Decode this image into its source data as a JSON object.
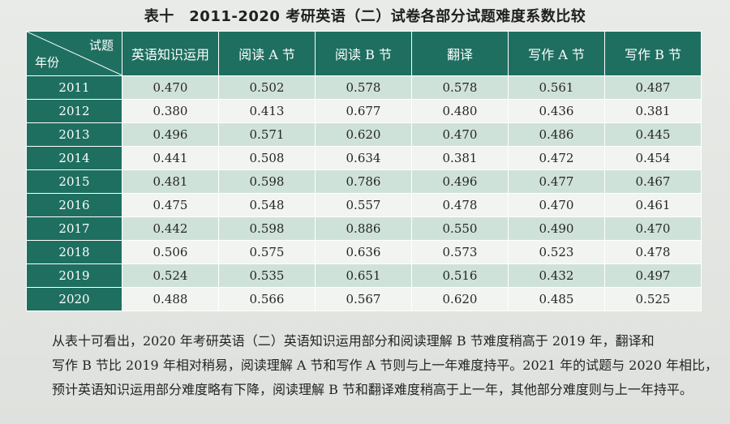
{
  "title": "表十　2011-2020 考研英语（二）试卷各部分试题难度系数比较",
  "table": {
    "corner_top": "试题",
    "corner_bottom": "年份",
    "columns": [
      "英语知识运用",
      "阅读 A 节",
      "阅读 B 节",
      "翻译",
      "写作 A 节",
      "写作 B 节"
    ],
    "rows": [
      {
        "year": "2011",
        "values": [
          "0.470",
          "0.502",
          "0.578",
          "0.578",
          "0.561",
          "0.487"
        ]
      },
      {
        "year": "2012",
        "values": [
          "0.380",
          "0.413",
          "0.677",
          "0.480",
          "0.436",
          "0.381"
        ]
      },
      {
        "year": "2013",
        "values": [
          "0.496",
          "0.571",
          "0.620",
          "0.470",
          "0.486",
          "0.445"
        ]
      },
      {
        "year": "2014",
        "values": [
          "0.441",
          "0.508",
          "0.634",
          "0.381",
          "0.472",
          "0.454"
        ]
      },
      {
        "year": "2015",
        "values": [
          "0.481",
          "0.598",
          "0.786",
          "0.496",
          "0.477",
          "0.467"
        ]
      },
      {
        "year": "2016",
        "values": [
          "0.475",
          "0.548",
          "0.557",
          "0.478",
          "0.470",
          "0.461"
        ]
      },
      {
        "year": "2017",
        "values": [
          "0.442",
          "0.598",
          "0.886",
          "0.550",
          "0.490",
          "0.470"
        ]
      },
      {
        "year": "2018",
        "values": [
          "0.506",
          "0.575",
          "0.636",
          "0.573",
          "0.523",
          "0.478"
        ]
      },
      {
        "year": "2019",
        "values": [
          "0.524",
          "0.535",
          "0.651",
          "0.516",
          "0.432",
          "0.497"
        ]
      },
      {
        "year": "2020",
        "values": [
          "0.488",
          "0.566",
          "0.567",
          "0.620",
          "0.485",
          "0.525"
        ]
      }
    ]
  },
  "paragraph": {
    "lines": [
      "从表十可看出，2020 年考研英语（二）英语知识运用部分和阅读理解 B 节难度稍高于 2019 年，翻译和",
      "写作 B 节比 2019 年相对稍易，阅读理解 A 节和写作 A 节则与上一年难度持平。2021 年的试题与 2020 年相比，",
      "预计英语知识运用部分难度略有下降，阅读理解 B 节和翻译难度稍高于上一年，其他部分难度则与上一年持平。"
    ]
  }
}
